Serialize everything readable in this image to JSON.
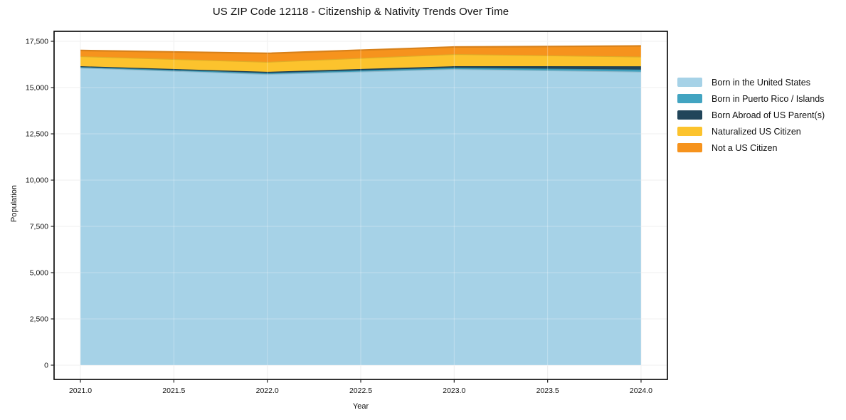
{
  "title": "US ZIP Code 12118 - Citizenship & Nativity Trends Over Time",
  "chart_data": {
    "type": "area",
    "stacked": true,
    "title": "US ZIP Code 12118 - Citizenship & Nativity Trends Over Time",
    "xlabel": "Year",
    "ylabel": "Population",
    "x": [
      2021,
      2022,
      2023,
      2024
    ],
    "series": [
      {
        "name": "Born in the United States",
        "color": "#a6d2e7",
        "values": [
          16075,
          15730,
          16000,
          15860
        ]
      },
      {
        "name": "Born in Puerto Rico / Islands",
        "color": "#42a4c1",
        "values": [
          40,
          60,
          75,
          115
        ]
      },
      {
        "name": "Born Abroad of US Parent(s)",
        "color": "#21455a",
        "values": [
          40,
          60,
          80,
          175
        ]
      },
      {
        "name": "Naturalized US Citizen",
        "color": "#fcc32d",
        "values": [
          540,
          540,
          655,
          525
        ]
      },
      {
        "name": "Not a US Citizen",
        "color": "#f6931d",
        "values": [
          310,
          460,
          385,
          575
        ]
      }
    ],
    "xlim": [
      2020.859,
      2024.141
    ],
    "ylim": [
      -770,
      18040
    ],
    "xticks": [
      2021.0,
      2021.5,
      2022.0,
      2022.5,
      2023.0,
      2023.5,
      2024.0
    ],
    "xtick_labels": [
      "2021.0",
      "2021.5",
      "2022.0",
      "2022.5",
      "2023.0",
      "2023.5",
      "2024.0"
    ],
    "yticks": [
      0,
      2500,
      5000,
      7500,
      10000,
      12500,
      15000,
      17500
    ],
    "ytick_labels": [
      "0",
      "2,500",
      "5,000",
      "7,500",
      "10,000",
      "12,500",
      "15,000",
      "17,500"
    ],
    "grid": true,
    "grid_color": "#e9e9e9",
    "border_color": "#000000",
    "legend_position": "outside-center-right",
    "legend_frame": false
  }
}
